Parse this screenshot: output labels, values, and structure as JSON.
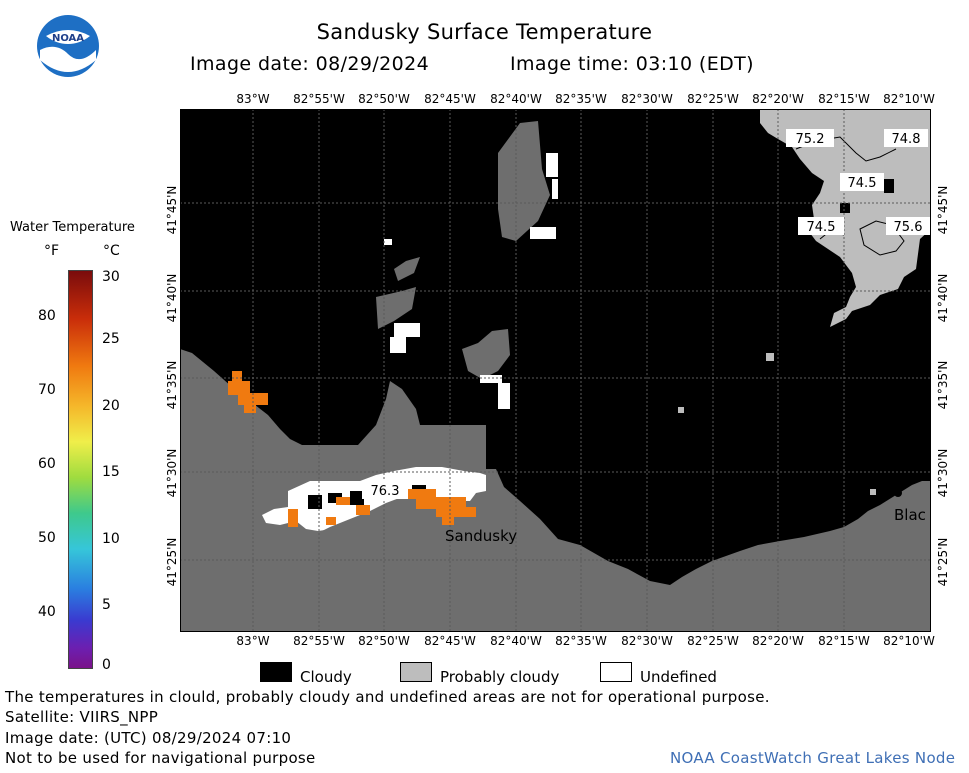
{
  "header": {
    "title": "Sandusky Surface Temperature",
    "image_date": "Image date: 08/29/2024",
    "image_time": "Image time: 03:10 (EDT)"
  },
  "logo": {
    "text": "NOAA"
  },
  "colorbar": {
    "title": "Water Temperature",
    "unit_f": "°F",
    "unit_c": "°C",
    "f_ticks": [
      "80",
      "70",
      "60",
      "50",
      "40"
    ],
    "c_ticks": [
      "30",
      "25",
      "20",
      "15",
      "10",
      "5",
      "0"
    ]
  },
  "map": {
    "lon_top": [
      "83°W",
      "82°55'W",
      "82°50'W",
      "82°45'W",
      "82°40'W",
      "82°35'W",
      "82°30'W",
      "82°25'W",
      "82°20'W",
      "82°15'W",
      "82°10'W"
    ],
    "lon_bottom": [
      "83°W",
      "82°55'W",
      "82°50'W",
      "82°45'W",
      "82°40'W",
      "82°35'W",
      "82°30'W",
      "82°25'W",
      "82°20'W",
      "82°15'W",
      "82°10'W"
    ],
    "lat_left": [
      "41°45'N",
      "41°40'N",
      "41°35'N",
      "41°30'N",
      "41°25'N"
    ],
    "lat_right": [
      "41°45'N",
      "41°40'N",
      "41°35'N",
      "41°30'N",
      "41°25'N"
    ],
    "temps": [
      "75.2",
      "74.8",
      "74.5",
      "74.5",
      "75.6",
      "76.3"
    ],
    "places": [
      "Sandusky",
      "Blac"
    ]
  },
  "legend": {
    "cloudy": "Cloudy",
    "probably_cloudy": "Probably cloudy",
    "undefined": "Undefined"
  },
  "footer": {
    "note": "The temperatures in clould, probably cloudy and undefined areas are not for operational purpose.",
    "satellite": "Satellite: VIIRS_NPP",
    "utc_date": "Image date: (UTC) 08/29/2024  07:10",
    "nav_warning": "Not to be used for navigational purpose",
    "credit": "NOAA CoastWatch Great Lakes Node"
  },
  "colors": {
    "land": "#6e6e6e",
    "cloudy": "#000000",
    "probably_cloudy": "#bdbdbd",
    "undefined": "#ffffff",
    "warm": "#f07a10",
    "credit": "#3f6fb5"
  }
}
